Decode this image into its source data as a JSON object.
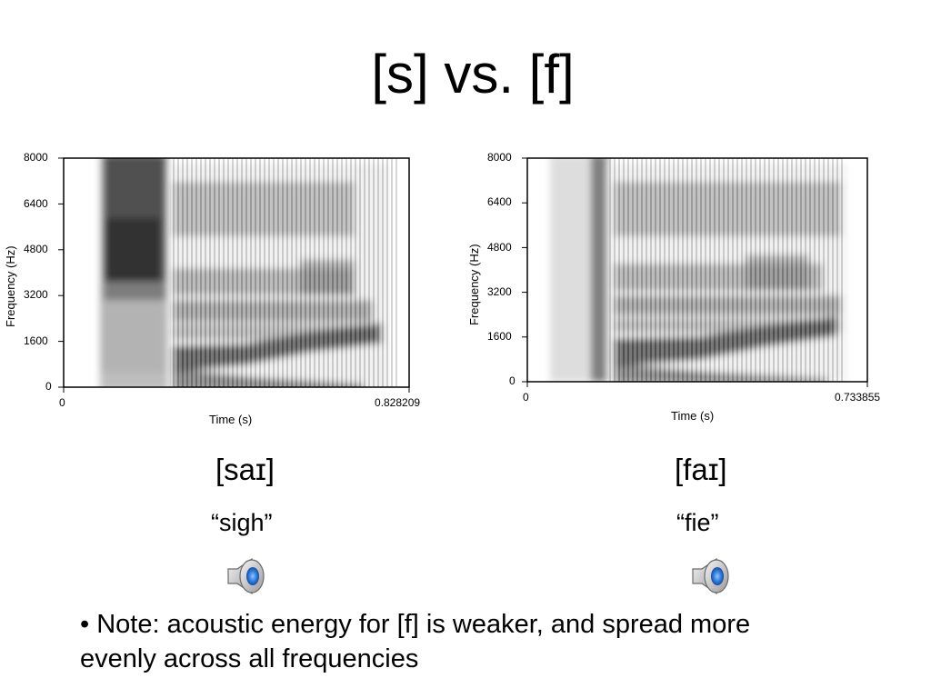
{
  "title": "[s] vs. [f]",
  "panels": [
    {
      "y_axis_label": "Frequency (Hz)",
      "x_axis_label": "Time (s)",
      "y_ticks": [
        "8000",
        "6400",
        "4800",
        "3200",
        "1600",
        "0"
      ],
      "x_min_label": "0",
      "x_max_label": "0.828209",
      "transcription": "[saɪ]",
      "gloss": "“sigh”",
      "speaker_icon": "speaker-icon"
    },
    {
      "y_axis_label": "Frequency (Hz)",
      "x_axis_label": "Time (s)",
      "y_ticks": [
        "8000",
        "6400",
        "4800",
        "3200",
        "1600",
        "0"
      ],
      "x_min_label": "0",
      "x_max_label": "0.733855",
      "transcription": "[faɪ]",
      "gloss": "“fie”",
      "speaker_icon": "speaker-icon"
    }
  ],
  "note": "• Note: acoustic energy for [f] is weaker, and spread more evenly across all frequencies"
}
